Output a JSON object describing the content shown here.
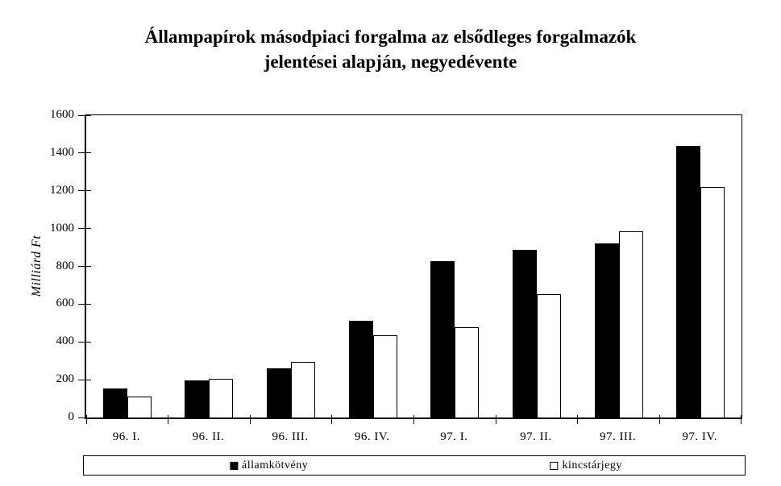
{
  "title": {
    "line1": "Állampapírok másodpiaci forgalma az elsődleges forgalmazók",
    "line2": "jelentései alapján, negyedévente"
  },
  "chart_data": {
    "type": "bar",
    "title": "Állampapírok másodpiaci forgalma az elsődleges forgalmazók jelentései alapján, negyedévente",
    "categories": [
      "96. I.",
      "96. II.",
      "96. III.",
      "96. IV.",
      "97. I.",
      "97. II.",
      "97. III.",
      "97. IV."
    ],
    "series": [
      {
        "name": "államkötvény",
        "fill": "#000000",
        "values": [
          155,
          195,
          260,
          512,
          828,
          888,
          920,
          1440
        ]
      },
      {
        "name": "kincstárjegy",
        "fill": "#ffffff",
        "values": [
          110,
          205,
          295,
          435,
          480,
          652,
          987,
          1220
        ]
      }
    ],
    "xlabel": "",
    "ylabel": "Milliárd Ft",
    "ylim": [
      0,
      1600
    ],
    "ytick_step": 200,
    "yticks": [
      0,
      200,
      400,
      600,
      800,
      1000,
      1200,
      1400,
      1600
    ],
    "grid": false,
    "legend_position": "bottom",
    "colors": {
      "axis": "#000000",
      "background": "#ffffff"
    }
  }
}
